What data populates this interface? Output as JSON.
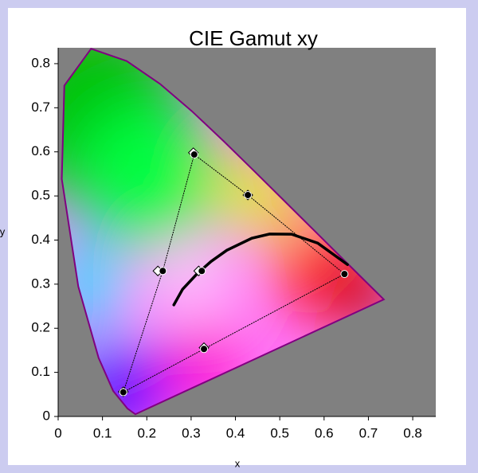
{
  "chart_data": {
    "type": "scatter",
    "title": "CIE Gamut xy",
    "x_label": "x",
    "y_label": "y",
    "xlim": [
      0,
      0.852
    ],
    "ylim": [
      0,
      0.836
    ],
    "xticks": [
      0,
      0.1,
      0.2,
      0.3,
      0.4,
      0.5,
      0.6,
      0.7,
      0.8
    ],
    "yticks": [
      0,
      0.1,
      0.2,
      0.3,
      0.4,
      0.5,
      0.6,
      0.7,
      0.8
    ],
    "grid": false,
    "series": [
      {
        "kind": "locus",
        "color": "#800080",
        "x": [
          0.1741,
          0.1566,
          0.1241,
          0.0913,
          0.0454,
          0.0082,
          0.0139,
          0.0743,
          0.1547,
          0.2296,
          0.3016,
          0.3731,
          0.4441,
          0.5125,
          0.5752,
          0.627,
          0.6915,
          0.7347
        ],
        "values": [
          0.005,
          0.0177,
          0.0578,
          0.1327,
          0.295,
          0.5384,
          0.7502,
          0.8338,
          0.8059,
          0.7543,
          0.6923,
          0.6245,
          0.5547,
          0.4866,
          0.4242,
          0.3725,
          0.3083,
          0.2653
        ]
      },
      {
        "kind": "line",
        "color": "#000000",
        "x": [
          0.261,
          0.2807,
          0.3135,
          0.3451,
          0.3805,
          0.4369,
          0.477,
          0.5267,
          0.5857,
          0.6528
        ],
        "values": [
          0.253,
          0.2884,
          0.3236,
          0.3516,
          0.3768,
          0.4041,
          0.4137,
          0.4133,
          0.3931,
          0.3444
        ]
      },
      {
        "kind": "diamonds",
        "color": "#ffffff",
        "x": [
          0.305,
          0.428,
          0.329,
          0.147,
          0.225,
          0.317
        ],
        "values": [
          0.598,
          0.502,
          0.156,
          0.056,
          0.33,
          0.33
        ]
      },
      {
        "kind": "dots",
        "color": "#000000",
        "x": [
          0.307,
          0.428,
          0.646,
          0.329,
          0.147,
          0.236,
          0.324
        ],
        "values": [
          0.594,
          0.502,
          0.323,
          0.153,
          0.055,
          0.33,
          0.33
        ]
      }
    ]
  }
}
